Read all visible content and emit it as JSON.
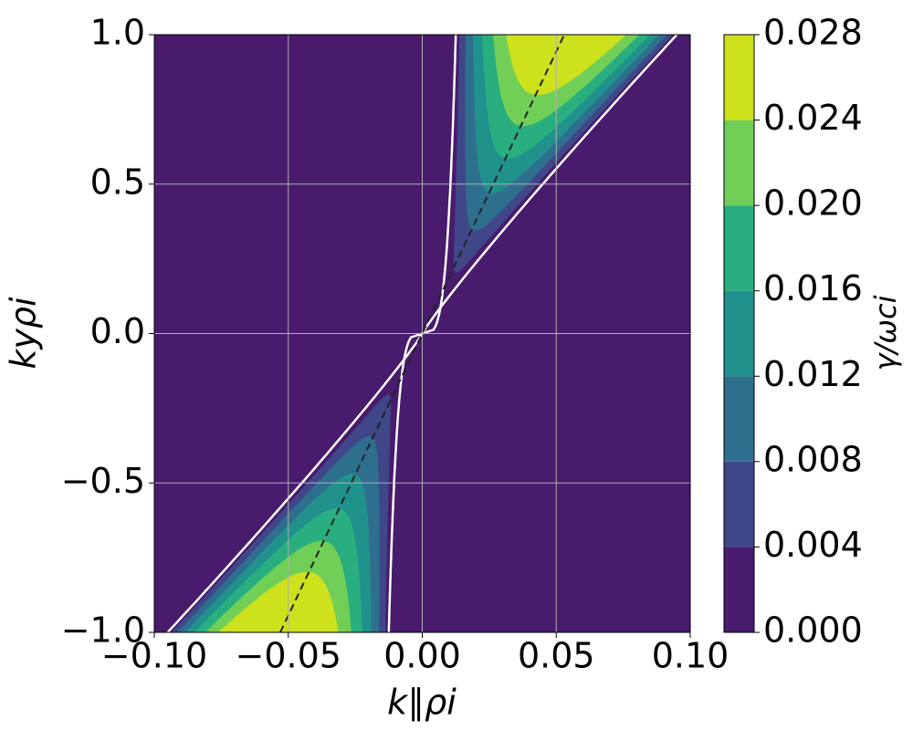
{
  "chart_data": {
    "type": "contour",
    "xlabel": "k∥ρi",
    "ylabel": "kyρi",
    "colorbar_label": "γ/ωci",
    "xlim": [
      -0.1,
      0.1
    ],
    "ylim": [
      -1,
      1
    ],
    "xticks": [
      {
        "value": -0.1,
        "label": "−0.10"
      },
      {
        "value": -0.05,
        "label": "−0.05"
      },
      {
        "value": 0,
        "label": "0.00"
      },
      0.05,
      {
        "value": 0.1,
        "label": "0.10"
      }
    ],
    "yticks": [
      {
        "value": -1,
        "label": "−1.0"
      },
      {
        "value": -0.5,
        "label": "−0.5"
      },
      {
        "value": 0,
        "label": "0.0"
      },
      0.5,
      {
        "value": 1,
        "label": "1.0"
      }
    ],
    "levels": [
      {
        "value": 0,
        "label": "0.000"
      },
      0.004,
      0.008,
      0.012,
      0.016,
      {
        "value": 0.02,
        "label": "0.020"
      },
      0.024,
      0.028
    ],
    "colors": [
      "#481b6d",
      "#3f4788",
      "#2e6f8e",
      "#21918c",
      "#29af7f",
      "#71cf57",
      "#cde11d"
    ],
    "grid": true
  }
}
